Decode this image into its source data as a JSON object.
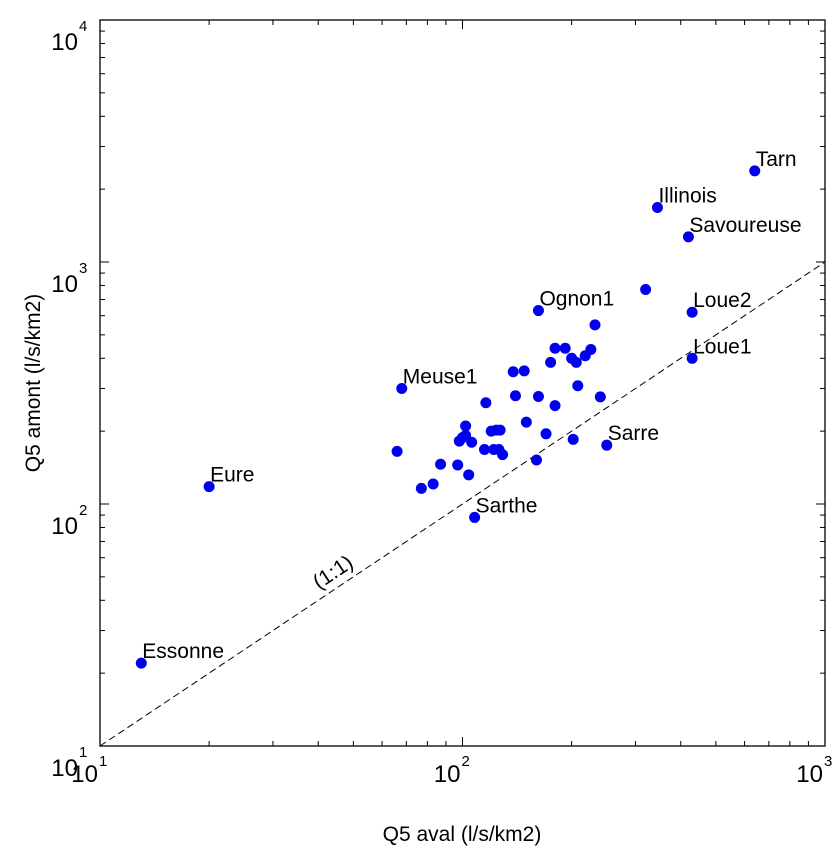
{
  "chart_data": {
    "type": "scatter",
    "title": "",
    "xlabel": "Q5 aval (l/s/km2)",
    "ylabel": "Q5 amont (l/s/km2)",
    "xscale": "log",
    "yscale": "log",
    "xlim": [
      10,
      1000
    ],
    "ylim": [
      10,
      10000
    ],
    "x_ticks": [
      {
        "value": 10,
        "base": "10",
        "exp": "1"
      },
      {
        "value": 100,
        "base": "10",
        "exp": "2"
      },
      {
        "value": 1000,
        "base": "10",
        "exp": "3"
      }
    ],
    "y_ticks": [
      {
        "value": 10,
        "base": "10",
        "exp": "1"
      },
      {
        "value": 100,
        "base": "10",
        "exp": "2"
      },
      {
        "value": 1000,
        "base": "10",
        "exp": "3"
      },
      {
        "value": 10000,
        "base": "10",
        "exp": "4"
      }
    ],
    "reference_line": {
      "label": "(1:1)",
      "style": "dashed"
    },
    "grid": false,
    "marker_color": "#0000ee",
    "labeled_points": [
      {
        "label": "Tarn",
        "x": 640,
        "y": 2380
      },
      {
        "label": "Illinois",
        "x": 345,
        "y": 1680
      },
      {
        "label": "Savoureuse",
        "x": 420,
        "y": 1270
      },
      {
        "label": "Ognon1",
        "x": 162,
        "y": 630
      },
      {
        "label": "Loue2",
        "x": 430,
        "y": 620
      },
      {
        "label": "Loue1",
        "x": 430,
        "y": 400
      },
      {
        "label": "Meuse1",
        "x": 68,
        "y": 300
      },
      {
        "label": "Sarre",
        "x": 250,
        "y": 175
      },
      {
        "label": "Eure",
        "x": 20,
        "y": 118
      },
      {
        "label": "Sarthe",
        "x": 108,
        "y": 88
      },
      {
        "label": "Essonne",
        "x": 13,
        "y": 22
      }
    ],
    "points": [
      {
        "x": 320,
        "y": 770
      },
      {
        "x": 232,
        "y": 550
      },
      {
        "x": 180,
        "y": 440
      },
      {
        "x": 192,
        "y": 440
      },
      {
        "x": 226,
        "y": 435
      },
      {
        "x": 218,
        "y": 410
      },
      {
        "x": 200,
        "y": 400
      },
      {
        "x": 206,
        "y": 385
      },
      {
        "x": 175,
        "y": 385
      },
      {
        "x": 148,
        "y": 355
      },
      {
        "x": 138,
        "y": 352
      },
      {
        "x": 208,
        "y": 308
      },
      {
        "x": 140,
        "y": 280
      },
      {
        "x": 162,
        "y": 278
      },
      {
        "x": 240,
        "y": 277
      },
      {
        "x": 116,
        "y": 262
      },
      {
        "x": 180,
        "y": 255
      },
      {
        "x": 150,
        "y": 218
      },
      {
        "x": 102,
        "y": 210
      },
      {
        "x": 124,
        "y": 202
      },
      {
        "x": 127,
        "y": 202
      },
      {
        "x": 120,
        "y": 200
      },
      {
        "x": 170,
        "y": 195
      },
      {
        "x": 102,
        "y": 192
      },
      {
        "x": 100,
        "y": 188
      },
      {
        "x": 98,
        "y": 182
      },
      {
        "x": 106,
        "y": 180
      },
      {
        "x": 202,
        "y": 185
      },
      {
        "x": 115,
        "y": 168
      },
      {
        "x": 122,
        "y": 168
      },
      {
        "x": 126,
        "y": 168
      },
      {
        "x": 66,
        "y": 165
      },
      {
        "x": 129,
        "y": 160
      },
      {
        "x": 160,
        "y": 152
      },
      {
        "x": 87,
        "y": 146
      },
      {
        "x": 97,
        "y": 145
      },
      {
        "x": 104,
        "y": 132
      },
      {
        "x": 83,
        "y": 121
      },
      {
        "x": 77,
        "y": 116
      }
    ]
  }
}
